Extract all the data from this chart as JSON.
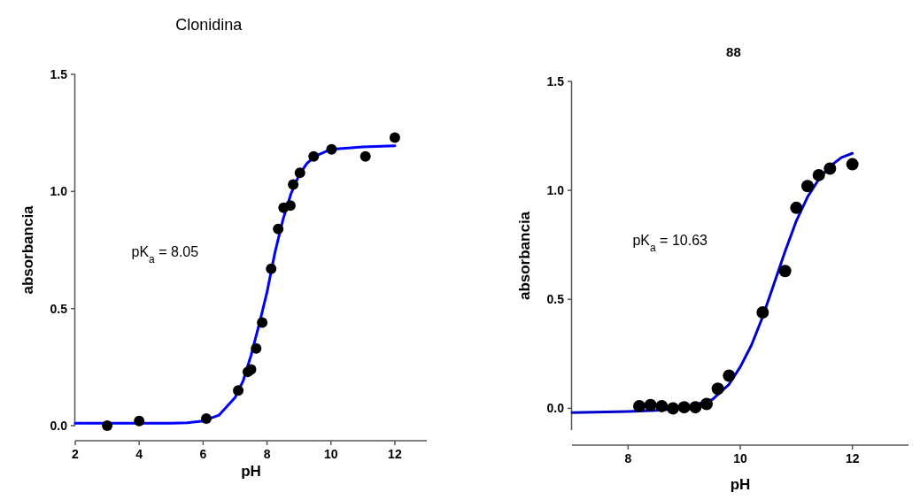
{
  "chart_data": [
    {
      "type": "scatter",
      "title": "Clonidina",
      "xlabel": "pH",
      "ylabel": "absorbancia",
      "annotations": [
        "pK$_{a}$ = 8.05"
      ],
      "xlim": [
        2,
        13
      ],
      "xticks": [
        2,
        4,
        6,
        8,
        10,
        12
      ],
      "ylim": [
        0,
        1.5
      ],
      "yticks": [
        {
          "value": 0,
          "label": "0.0"
        },
        {
          "value": 0.5,
          "label": "0.5"
        },
        {
          "value": 1,
          "label": "1.0"
        },
        {
          "value": 1.5,
          "label": "1.5"
        }
      ],
      "grid": false,
      "marker": "circle",
      "series": [
        {
          "type": "line",
          "color": "#0000ff",
          "marker": "none",
          "line_style": "solid",
          "x": [
            2,
            3,
            4,
            5,
            5.5,
            6,
            6.5,
            7,
            7.25,
            7.5,
            7.75,
            8,
            8.25,
            8.5,
            8.75,
            9,
            9.25,
            9.5,
            10,
            11,
            12
          ],
          "values": [
            0.01,
            0.01,
            0.01,
            0.01,
            0.012,
            0.02,
            0.045,
            0.12,
            0.19,
            0.3,
            0.43,
            0.57,
            0.74,
            0.88,
            0.99,
            1.07,
            1.12,
            1.15,
            1.18,
            1.19,
            1.195
          ]
        },
        {
          "color": "#000000",
          "x": [
            3,
            4,
            6.1,
            7.1,
            7.4,
            7.5,
            7.66,
            7.85,
            8.13,
            8.35,
            8.52,
            8.73,
            8.82,
            9.03,
            9.46,
            10.02,
            11.08,
            12
          ],
          "values": [
            0,
            0.02,
            0.03,
            0.15,
            0.23,
            0.24,
            0.33,
            0.44,
            0.67,
            0.84,
            0.93,
            0.94,
            1.03,
            1.08,
            1.15,
            1.18,
            1.15,
            1.23
          ]
        }
      ]
    },
    {
      "type": "scatter",
      "title": "88",
      "xlabel": "pH",
      "ylabel": "absorbancia",
      "annotations": [
        "pK$_{a}$ = 10.63"
      ],
      "xlim": [
        7,
        13
      ],
      "xticks": [
        8,
        10,
        12
      ],
      "ylim": [
        -0.1,
        1.5
      ],
      "yticks": [
        {
          "value": 0,
          "label": "0.0"
        },
        {
          "value": 0.5,
          "label": "0.5"
        },
        {
          "value": 1,
          "label": "1.0"
        },
        {
          "value": 1.5,
          "label": "1.5"
        }
      ],
      "grid": false,
      "marker": "circle",
      "series": [
        {
          "type": "line",
          "color": "#0000cc",
          "marker": "none",
          "line_style": "solid",
          "x": [
            7,
            8,
            8.5,
            9,
            9.5,
            9.8,
            10,
            10.2,
            10.4,
            10.6,
            10.8,
            11,
            11.2,
            11.4,
            11.6,
            11.8,
            12
          ],
          "values": [
            -0.02,
            -0.015,
            -0.01,
            0,
            0.04,
            0.11,
            0.19,
            0.29,
            0.42,
            0.57,
            0.72,
            0.86,
            0.97,
            1.05,
            1.11,
            1.15,
            1.17
          ]
        },
        {
          "color": "#000000",
          "x": [
            8.2,
            8.4,
            8.6,
            8.8,
            9,
            9.2,
            9.4,
            9.6,
            9.8,
            10.4,
            10.8,
            11,
            11.2,
            11.4,
            11.6,
            12
          ],
          "values": [
            0.01,
            0.015,
            0.01,
            0,
            0.005,
            0.005,
            0.02,
            0.09,
            0.15,
            0.44,
            0.63,
            0.92,
            1.02,
            1.07,
            1.1,
            1.12
          ]
        }
      ]
    }
  ]
}
